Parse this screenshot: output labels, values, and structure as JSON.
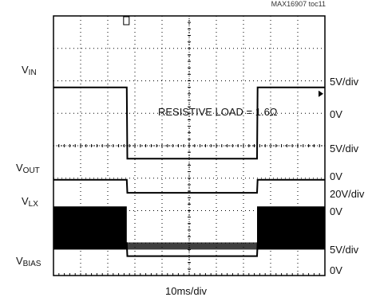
{
  "figure_id": "MAX16907 toc11",
  "annotation": "RESISTIVE LOAD = 1.6Ω",
  "time_scale": "10ms/div",
  "channels": [
    {
      "name": "V",
      "sub": "IN",
      "scale": "5V/div",
      "zero": "0V"
    },
    {
      "name": "V",
      "sub": "OUT",
      "scale": "5V/div",
      "zero": "0V"
    },
    {
      "name": "V",
      "sub": "LX",
      "scale": "20V/div",
      "zero": "0V"
    },
    {
      "name": "V",
      "sub": "BIAS",
      "scale": "5V/div",
      "zero": "0V"
    }
  ],
  "colors": {
    "trace": "#000000",
    "grid": "#000000",
    "background": "#ffffff"
  },
  "chart_data": {
    "type": "line",
    "title": "",
    "grid": true,
    "x_divisions": 10,
    "y_divisions": 8,
    "x_unit": "ms",
    "x_range": [
      0,
      100
    ],
    "series": [
      {
        "name": "VIN",
        "scale_per_div": 5,
        "x": [
          0,
          27,
          27.2,
          75,
          75.2,
          100
        ],
        "y": [
          14,
          14,
          3,
          3,
          14,
          14
        ]
      },
      {
        "name": "VOUT",
        "scale_per_div": 5,
        "x": [
          0,
          27,
          27.2,
          75,
          75.2,
          100
        ],
        "y": [
          5,
          5,
          3,
          3,
          5,
          5
        ]
      },
      {
        "name": "VLX",
        "scale_per_div": 20,
        "switching_amplitude_high": 14,
        "switching_amplitude_low": 2,
        "switching_high_x": [
          [
            0,
            27
          ],
          [
            75,
            100
          ]
        ]
      },
      {
        "name": "VBIAS",
        "scale_per_div": 5,
        "x": [
          0,
          27,
          27.2,
          75,
          75.2,
          100
        ],
        "y": [
          5,
          5,
          3,
          3,
          5,
          5
        ]
      }
    ]
  }
}
